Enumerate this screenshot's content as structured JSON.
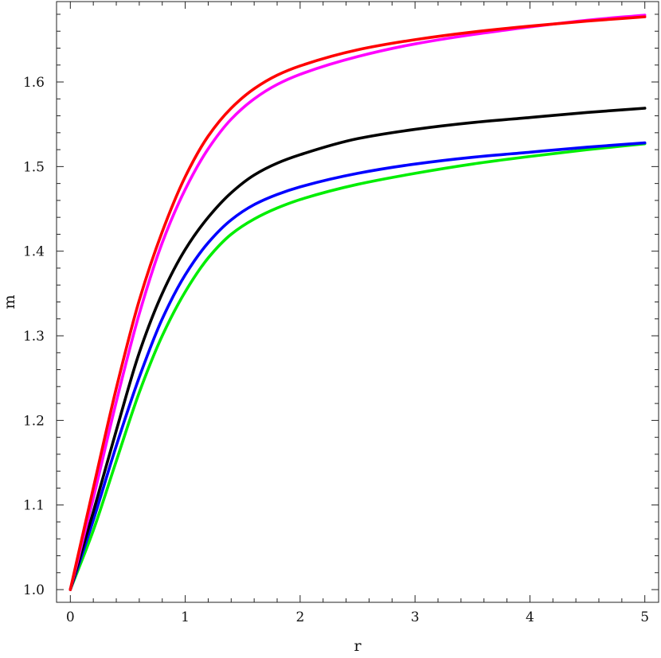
{
  "chart_data": {
    "type": "line",
    "title": "",
    "xlabel": "r",
    "ylabel": "m",
    "xlim": [
      -0.12,
      5.12
    ],
    "ylim": [
      0.985,
      1.695
    ],
    "x_ticks": [
      0,
      1,
      2,
      3,
      4,
      5
    ],
    "x_tick_labels": [
      "0",
      "1",
      "2",
      "3",
      "4",
      "5"
    ],
    "y_ticks": [
      1.0,
      1.1,
      1.2,
      1.3,
      1.4,
      1.5,
      1.6
    ],
    "y_tick_labels": [
      "1.0",
      "1.1",
      "1.2",
      "1.3",
      "1.4",
      "1.5",
      "1.6"
    ],
    "grid": false,
    "legend": "none",
    "x": [
      0,
      0.2,
      0.4,
      0.6,
      0.8,
      1.0,
      1.2,
      1.4,
      1.6,
      1.8,
      2.0,
      2.5,
      3.0,
      3.5,
      4.0,
      4.5,
      5.0
    ],
    "series": [
      {
        "color": "#ff0000",
        "values": [
          1.0,
          1.12,
          1.238,
          1.342,
          1.423,
          1.488,
          1.536,
          1.569,
          1.592,
          1.608,
          1.619,
          1.638,
          1.65,
          1.659,
          1.666,
          1.672,
          1.677
        ]
      },
      {
        "color": "#ff00ff",
        "values": [
          1.0,
          1.108,
          1.222,
          1.326,
          1.41,
          1.473,
          1.521,
          1.556,
          1.58,
          1.597,
          1.609,
          1.63,
          1.645,
          1.656,
          1.665,
          1.673,
          1.679
        ]
      },
      {
        "color": "#000000",
        "values": [
          1.0,
          1.092,
          1.188,
          1.28,
          1.35,
          1.402,
          1.44,
          1.469,
          1.49,
          1.504,
          1.514,
          1.533,
          1.544,
          1.552,
          1.558,
          1.564,
          1.569
        ]
      },
      {
        "color": "#0000ff",
        "values": [
          1.0,
          1.082,
          1.17,
          1.251,
          1.32,
          1.372,
          1.41,
          1.437,
          1.455,
          1.467,
          1.476,
          1.492,
          1.503,
          1.511,
          1.517,
          1.523,
          1.528
        ]
      },
      {
        "color": "#00ee00",
        "values": [
          1.0,
          1.07,
          1.152,
          1.233,
          1.3,
          1.352,
          1.392,
          1.42,
          1.438,
          1.451,
          1.461,
          1.479,
          1.492,
          1.503,
          1.512,
          1.52,
          1.527
        ]
      }
    ]
  }
}
